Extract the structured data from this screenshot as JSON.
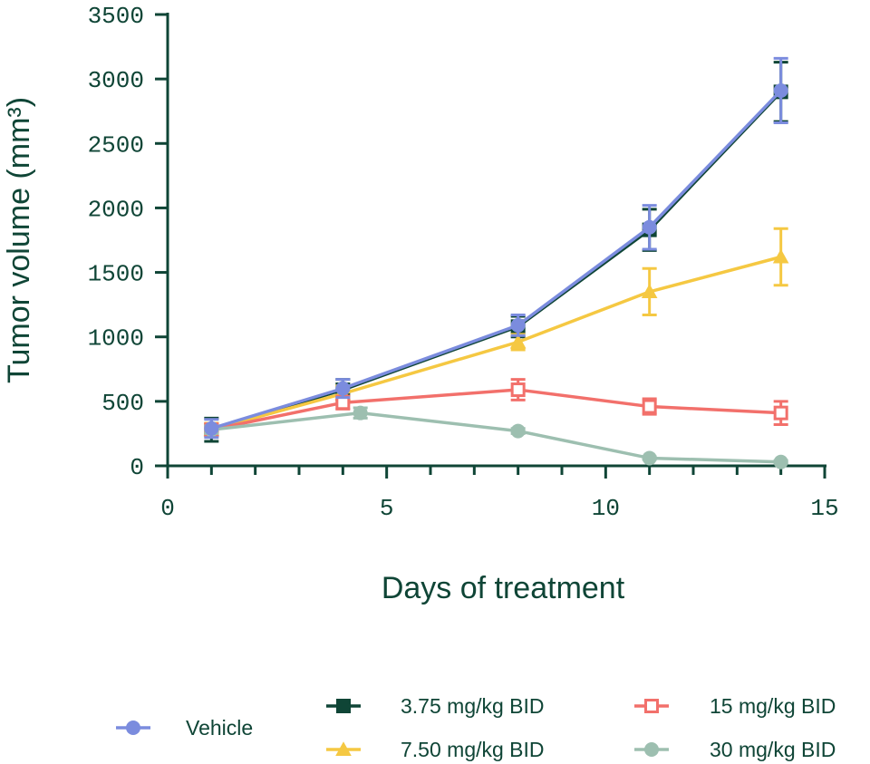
{
  "chart_data": {
    "type": "line",
    "xlabel": "Days of treatment",
    "ylabel": "Tumor volume (mm³)",
    "xlim": [
      0,
      15
    ],
    "ylim": [
      0,
      3500
    ],
    "x_ticks": [
      0,
      5,
      10,
      15
    ],
    "y_ticks": [
      0,
      500,
      1000,
      1500,
      2000,
      2500,
      3000,
      3500
    ],
    "x_minor_step": 1,
    "series": [
      {
        "name": "3.75 mg/kg BID",
        "color": "#0f4536",
        "marker": "square",
        "x": [
          1,
          4,
          8,
          11,
          14
        ],
        "y": [
          280,
          590,
          1080,
          1830,
          2900
        ],
        "err": [
          90,
          80,
          80,
          160,
          230
        ]
      },
      {
        "name": "7.50 mg/kg BID",
        "color": "#f5c842",
        "marker": "triangle",
        "x": [
          1,
          4,
          8,
          11,
          14
        ],
        "y": [
          280,
          560,
          960,
          1350,
          1620
        ],
        "err": [
          50,
          60,
          60,
          180,
          220
        ]
      },
      {
        "name": "15 mg/kg BID",
        "color": "#f2706b",
        "marker": "square-open",
        "x": [
          1,
          4,
          8,
          11,
          14
        ],
        "y": [
          280,
          490,
          590,
          460,
          410
        ],
        "err": [
          40,
          50,
          80,
          60,
          90
        ]
      },
      {
        "name": "30 mg/kg BID",
        "color": "#9dbfb0",
        "marker": "circle",
        "x": [
          1,
          4.4,
          8,
          11,
          14
        ],
        "y": [
          280,
          410,
          270,
          60,
          30
        ],
        "err": [
          30,
          40,
          20,
          10,
          10
        ]
      },
      {
        "name": "Vehicle",
        "color": "#7b8cde",
        "marker": "circle",
        "x": [
          1,
          4,
          8,
          11,
          14
        ],
        "y": [
          290,
          600,
          1090,
          1850,
          2910
        ],
        "err": [
          70,
          70,
          80,
          170,
          250
        ]
      }
    ],
    "legend": {
      "placement": "bottom",
      "order": [
        "Vehicle",
        "3.75 mg/kg BID",
        "7.50 mg/kg BID",
        "15 mg/kg BID",
        "30 mg/kg BID"
      ]
    }
  }
}
